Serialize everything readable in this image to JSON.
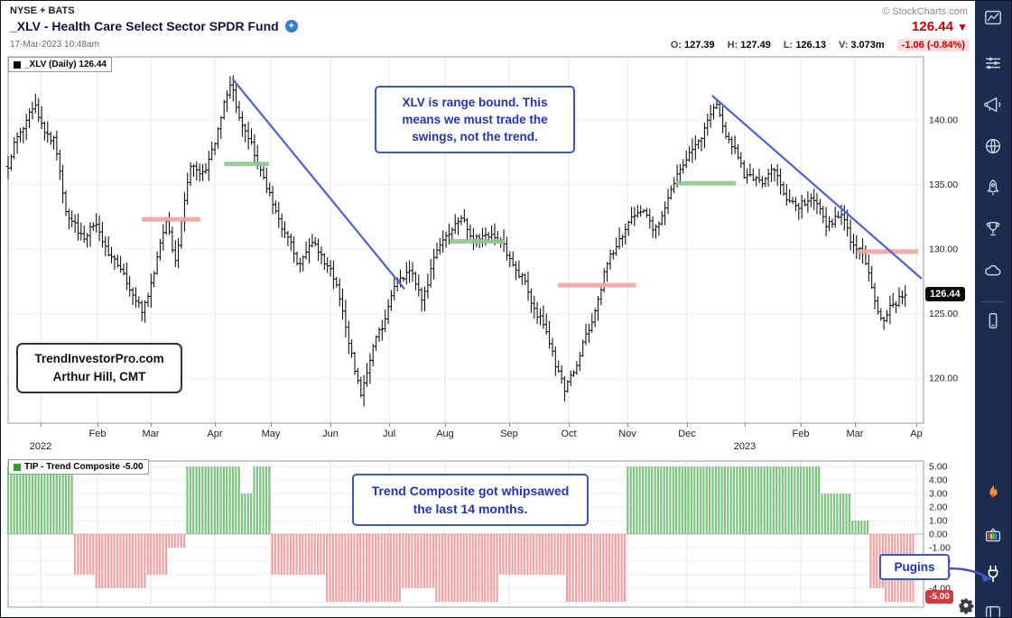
{
  "header": {
    "exchange_label": "NYSE + BATS",
    "copyright": "© StockCharts.com",
    "title": "_XLV - Health Care Select Sector SPDR Fund",
    "datetime": "17-Mar-2023 10:48am",
    "last_price": "126.44",
    "direction_arrow": "▼",
    "quote_fields": [
      {
        "label": "O:",
        "value": "127.39"
      },
      {
        "label": "H:",
        "value": "127.49"
      },
      {
        "label": "L:",
        "value": "126.13"
      },
      {
        "label": "V:",
        "value": "3.073m"
      }
    ],
    "change_text": "-1.06 (-0.84%)"
  },
  "price_panel": {
    "legend": "_XLV (Daily) 126.44",
    "price_tag": "126.44",
    "annotations": {
      "rangebound": "XLV is range bound. This means we must trade the swings, not the trend.",
      "credit_line1": "TrendInvestorPro.com",
      "credit_line2": "Arthur Hill, CMT"
    }
  },
  "indicator_panel": {
    "legend": "TIP - Trend Composite -5.00",
    "value_tag": "-5.00",
    "annotations": {
      "whipsaw": "Trend Composite got whipsawed the last 14 months.",
      "plugins": "Pugins"
    }
  },
  "x_axis": {
    "months": [
      [
        "Feb",
        107
      ],
      [
        "Mar",
        166
      ],
      [
        "Apr",
        237
      ],
      [
        "May",
        299
      ],
      [
        "Jun",
        365
      ],
      [
        "Jul",
        430
      ],
      [
        "Aug",
        492
      ],
      [
        "Sep",
        563
      ],
      [
        "Oct",
        629
      ],
      [
        "Nov",
        694
      ],
      [
        "Dec",
        760
      ],
      [
        "Feb",
        886
      ],
      [
        "Mar",
        946
      ],
      [
        "Ap",
        1014
      ]
    ],
    "years": [
      [
        "2022",
        44
      ],
      [
        "2023",
        824
      ]
    ],
    "gridline_xs": [
      44,
      107,
      166,
      237,
      299,
      365,
      430,
      492,
      563,
      629,
      694,
      760,
      824,
      886,
      946,
      1014
    ]
  },
  "chart_data": [
    {
      "type": "ohlc-bar",
      "symbol": "_XLV",
      "timeframe": "Daily",
      "last_close": 126.44,
      "ylim": [
        116.5,
        144.9
      ],
      "y_ticks": [
        140,
        135,
        130,
        125,
        120
      ],
      "bars_count": 296,
      "close_path_anchors": [
        [
          0.0,
          136.5
        ],
        [
          0.012,
          139.0
        ],
        [
          0.028,
          141.0
        ],
        [
          0.042,
          139.0
        ],
        [
          0.051,
          138.2
        ],
        [
          0.064,
          132.8
        ],
        [
          0.079,
          130.8
        ],
        [
          0.094,
          132.0
        ],
        [
          0.107,
          130.0
        ],
        [
          0.121,
          128.5
        ],
        [
          0.134,
          127.0
        ],
        [
          0.146,
          124.8
        ],
        [
          0.158,
          128.0
        ],
        [
          0.173,
          132.0
        ],
        [
          0.184,
          129.2
        ],
        [
          0.2,
          137.0
        ],
        [
          0.214,
          135.5
        ],
        [
          0.228,
          139.0
        ],
        [
          0.244,
          143.0
        ],
        [
          0.255,
          139.5
        ],
        [
          0.269,
          137.5
        ],
        [
          0.283,
          134.5
        ],
        [
          0.299,
          131.8
        ],
        [
          0.317,
          128.8
        ],
        [
          0.334,
          130.5
        ],
        [
          0.349,
          128.8
        ],
        [
          0.364,
          126.0
        ],
        [
          0.378,
          120.5
        ],
        [
          0.386,
          118.9
        ],
        [
          0.398,
          122.3
        ],
        [
          0.411,
          124.6
        ],
        [
          0.424,
          127.2
        ],
        [
          0.438,
          128.6
        ],
        [
          0.451,
          126.0
        ],
        [
          0.465,
          129.2
        ],
        [
          0.48,
          131.3
        ],
        [
          0.497,
          132.5
        ],
        [
          0.512,
          130.6
        ],
        [
          0.53,
          131.4
        ],
        [
          0.547,
          129.5
        ],
        [
          0.562,
          127.5
        ],
        [
          0.581,
          124.6
        ],
        [
          0.596,
          121.8
        ],
        [
          0.608,
          118.9
        ],
        [
          0.622,
          121.5
        ],
        [
          0.636,
          124.0
        ],
        [
          0.651,
          128.0
        ],
        [
          0.665,
          130.5
        ],
        [
          0.68,
          132.3
        ],
        [
          0.693,
          133.2
        ],
        [
          0.705,
          131.4
        ],
        [
          0.72,
          133.8
        ],
        [
          0.735,
          136.3
        ],
        [
          0.75,
          137.8
        ],
        [
          0.764,
          140.0
        ],
        [
          0.774,
          141.2
        ],
        [
          0.788,
          138.4
        ],
        [
          0.804,
          136.0
        ],
        [
          0.82,
          135.0
        ],
        [
          0.834,
          136.2
        ],
        [
          0.85,
          134.2
        ],
        [
          0.863,
          133.0
        ],
        [
          0.877,
          134.2
        ],
        [
          0.893,
          132.0
        ],
        [
          0.909,
          132.6
        ],
        [
          0.923,
          130.6
        ],
        [
          0.936,
          129.0
        ],
        [
          0.946,
          126.5
        ],
        [
          0.955,
          123.8
        ],
        [
          0.964,
          125.6
        ],
        [
          0.973,
          126.2
        ],
        [
          0.98,
          126.44
        ]
      ],
      "trendlines": [
        {
          "t1": 0.245,
          "p1": 143.2,
          "t2": 0.433,
          "p2": 126.9
        },
        {
          "t1": 0.769,
          "p1": 141.9,
          "t2": 0.998,
          "p2": 127.7
        }
      ],
      "levels": [
        {
          "t1": 0.146,
          "t2": 0.21,
          "price": 132.3,
          "color": "red"
        },
        {
          "t1": 0.236,
          "t2": 0.285,
          "price": 136.6,
          "color": "green"
        },
        {
          "t1": 0.482,
          "t2": 0.543,
          "price": 130.6,
          "color": "green"
        },
        {
          "t1": 0.601,
          "t2": 0.686,
          "price": 127.2,
          "color": "red"
        },
        {
          "t1": 0.729,
          "t2": 0.795,
          "price": 135.1,
          "color": "green"
        },
        {
          "t1": 0.928,
          "t2": 0.994,
          "price": 129.8,
          "color": "red"
        }
      ]
    },
    {
      "type": "histogram",
      "name": "TIP - Trend Composite",
      "current_value": -5.0,
      "ylim": [
        -5.4,
        5.4
      ],
      "y_ticks": [
        5,
        4,
        3,
        2,
        1,
        0,
        -1,
        -2,
        -3,
        -4,
        -5
      ],
      "bars_count": 300,
      "segments": [
        {
          "t1": 0.0,
          "t2": 0.071,
          "v": 5
        },
        {
          "t1": 0.071,
          "t2": 0.095,
          "v": -3
        },
        {
          "t1": 0.095,
          "t2": 0.15,
          "v": -4
        },
        {
          "t1": 0.15,
          "t2": 0.175,
          "v": -3
        },
        {
          "t1": 0.175,
          "t2": 0.193,
          "v": -1
        },
        {
          "t1": 0.193,
          "t2": 0.255,
          "v": 5
        },
        {
          "t1": 0.255,
          "t2": 0.268,
          "v": 3
        },
        {
          "t1": 0.268,
          "t2": 0.287,
          "v": 5
        },
        {
          "t1": 0.287,
          "t2": 0.347,
          "v": -3
        },
        {
          "t1": 0.347,
          "t2": 0.43,
          "v": -5
        },
        {
          "t1": 0.43,
          "t2": 0.465,
          "v": -4
        },
        {
          "t1": 0.465,
          "t2": 0.535,
          "v": -5
        },
        {
          "t1": 0.535,
          "t2": 0.61,
          "v": -3
        },
        {
          "t1": 0.61,
          "t2": 0.675,
          "v": -5
        },
        {
          "t1": 0.675,
          "t2": 0.887,
          "v": 5
        },
        {
          "t1": 0.887,
          "t2": 0.921,
          "v": 3
        },
        {
          "t1": 0.921,
          "t2": 0.94,
          "v": 1
        },
        {
          "t1": 0.94,
          "t2": 0.957,
          "v": -4
        },
        {
          "t1": 0.957,
          "t2": 0.992,
          "v": -5
        }
      ]
    }
  ],
  "sidebar": {
    "icons": [
      "charts-icon",
      "sliders-icon",
      "megaphone-icon",
      "globe-icon",
      "rocket-icon",
      "trophy-icon",
      "cloud-icon",
      "mobile-icon",
      "flame-icon",
      "tv-icon",
      "plug-icon",
      "panel-icon"
    ]
  },
  "colors": {
    "accent_blue": "#3c55c8",
    "annotation_text": "#2233bb",
    "up_green": "#7cc47f",
    "down_red": "#f2a2a2",
    "price_red": "#cc0000",
    "trendline_blue": "#4a62d8",
    "sidebar_bg": "#1c2c4f"
  }
}
